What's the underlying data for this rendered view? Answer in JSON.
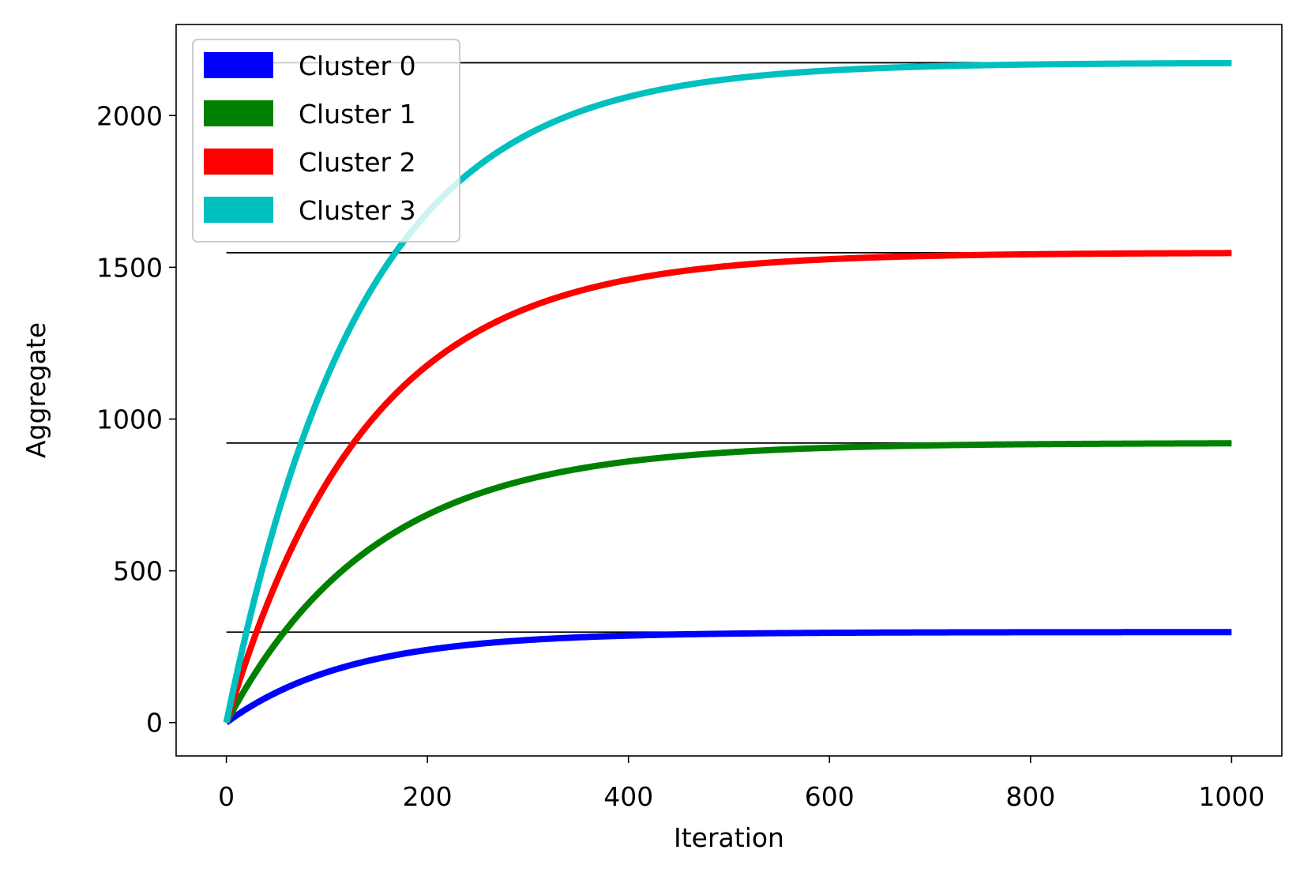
{
  "chart_data": {
    "type": "line",
    "title": "",
    "xlabel": "Iteration",
    "ylabel": "Aggregate",
    "xlim": [
      -50,
      1050
    ],
    "ylim": [
      -110,
      2300
    ],
    "xticks": [
      0,
      200,
      400,
      600,
      800,
      1000
    ],
    "xtick_labels": [
      "0",
      "200",
      "400",
      "600",
      "800",
      "1000"
    ],
    "yticks": [
      0,
      500,
      1000,
      1500,
      2000
    ],
    "ytick_labels": [
      "0",
      "500",
      "1000",
      "1500",
      "2000"
    ],
    "grid": false,
    "legend_position": "top-left",
    "x_range": [
      0,
      1000
    ],
    "series": [
      {
        "name": "Cluster 0",
        "color": "#0000ff",
        "asymptote": 298,
        "time_constant": 123,
        "x": [
          0,
          100,
          200,
          300,
          400,
          500,
          600,
          800,
          1000
        ],
        "values": [
          0,
          166,
          239,
          272,
          287,
          293,
          296,
          298,
          298
        ]
      },
      {
        "name": "Cluster 1",
        "color": "#008000",
        "asymptote": 921,
        "time_constant": 147,
        "x": [
          0,
          100,
          200,
          300,
          400,
          500,
          600,
          800,
          1000
        ],
        "values": [
          0,
          453,
          682,
          799,
          858,
          888,
          903,
          917,
          920
        ]
      },
      {
        "name": "Cluster 2",
        "color": "#ff0000",
        "asymptote": 1548,
        "time_constant": 140,
        "x": [
          0,
          100,
          200,
          300,
          400,
          500,
          600,
          800,
          1000
        ],
        "values": [
          0,
          789,
          1177,
          1367,
          1461,
          1507,
          1529,
          1543,
          1546
        ]
      },
      {
        "name": "Cluster 3",
        "color": "#00bfbf",
        "asymptote": 2174,
        "time_constant": 135,
        "x": [
          0,
          100,
          200,
          300,
          400,
          500,
          600,
          800,
          1000
        ],
        "values": [
          0,
          1139,
          1680,
          1938,
          2062,
          2120,
          2147,
          2169,
          2173
        ]
      }
    ],
    "reference_lines": [
      298,
      921,
      1548,
      2174
    ]
  }
}
